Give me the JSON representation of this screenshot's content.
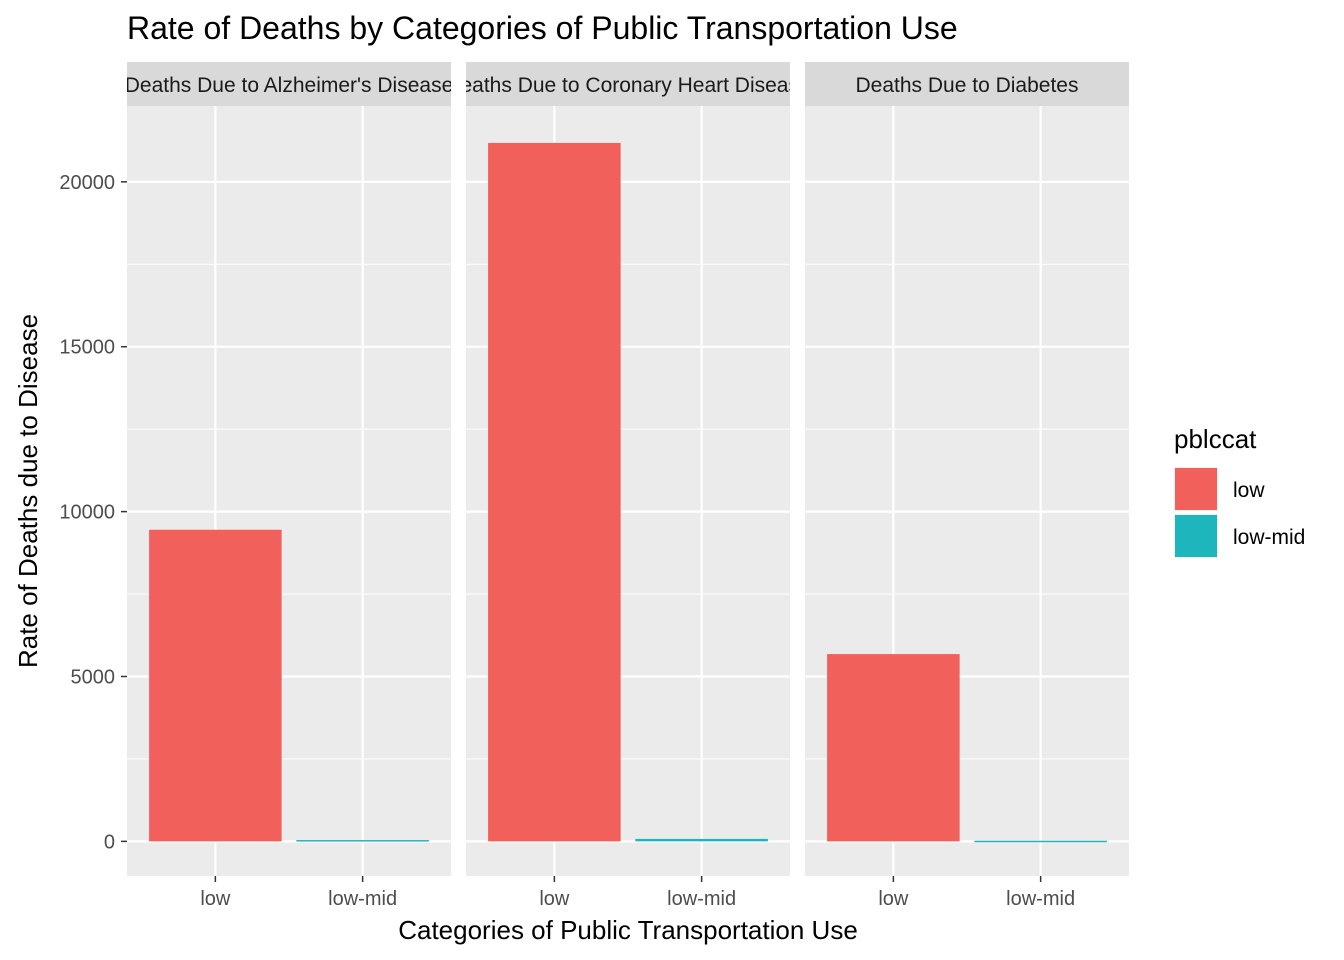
{
  "chart_data": {
    "type": "bar",
    "title": "Rate of Deaths by Categories of Public Transportation Use",
    "xlabel": "Categories of Public Transportation Use",
    "ylabel": "Rate of Deaths due to Disease",
    "categories": [
      "low",
      "low-mid"
    ],
    "ylim": [
      -1050,
      22300
    ],
    "yticks": [
      0,
      5000,
      10000,
      15000,
      20000
    ],
    "grid": true,
    "facets": [
      {
        "label": "Deaths Due to Alzheimer's Disease",
        "values": [
          9450,
          40
        ]
      },
      {
        "label": "Deaths Due to Coronary Heart Disease",
        "values": [
          21180,
          75
        ]
      },
      {
        "label": "Deaths Due to Diabetes",
        "values": [
          5680,
          20
        ]
      }
    ],
    "legend": {
      "title": "pblccat",
      "placement": "right",
      "items": [
        {
          "label": "low",
          "color": "#F2605C"
        },
        {
          "label": "low-mid",
          "color": "#1DB6BD"
        }
      ]
    },
    "colors": {
      "panel_bg": "#EBEBEB",
      "strip_bg": "#D9D9D9",
      "grid": "#FFFFFF"
    }
  }
}
